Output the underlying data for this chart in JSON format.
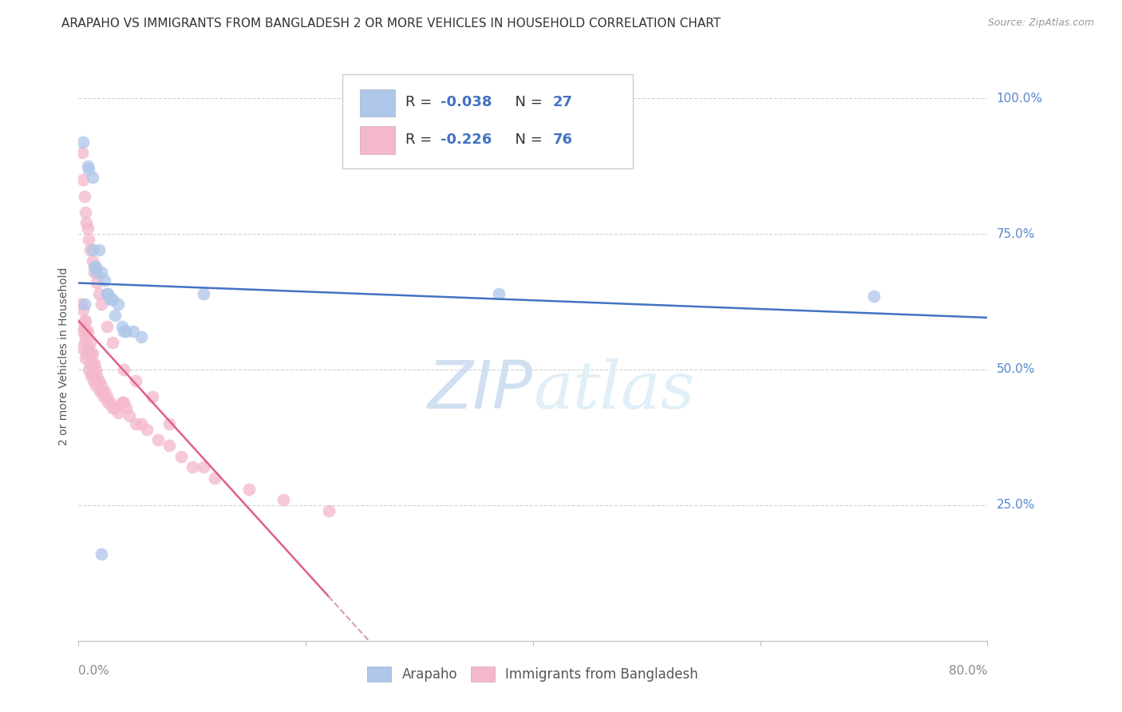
{
  "title": "ARAPAHO VS IMMIGRANTS FROM BANGLADESH 2 OR MORE VEHICLES IN HOUSEHOLD CORRELATION CHART",
  "source": "Source: ZipAtlas.com",
  "ylabel": "2 or more Vehicles in Household",
  "ytick_labels": [
    "100.0%",
    "75.0%",
    "50.0%",
    "25.0%"
  ],
  "ytick_values": [
    1.0,
    0.75,
    0.5,
    0.25
  ],
  "xlim": [
    0.0,
    0.8
  ],
  "ylim": [
    0.0,
    1.05
  ],
  "legend_label1": "Arapaho",
  "legend_label2": "Immigrants from Bangladesh",
  "r1": "-0.038",
  "n1": "27",
  "r2": "-0.226",
  "n2": "76",
  "color_blue": "#aec6e8",
  "color_pink": "#f4b8cb",
  "line_color_blue": "#4472c4",
  "line_color_pink": "#e06080",
  "dash_color": "#d4a0a8",
  "text_color": "#333333",
  "source_color": "#999999",
  "grid_color": "#d0d0d0",
  "right_label_color": "#5588cc",
  "bottom_label_color": "#888888",
  "legend_text_color": "#333333",
  "legend_value_color": "#4472c4",
  "bg_color": "#ffffff",
  "arapaho_x": [
    0.004,
    0.008,
    0.009,
    0.012,
    0.012,
    0.014,
    0.015,
    0.016,
    0.018,
    0.02,
    0.023,
    0.025,
    0.026,
    0.028,
    0.03,
    0.032,
    0.035,
    0.038,
    0.04,
    0.042,
    0.048,
    0.055,
    0.11,
    0.37,
    0.7,
    0.005,
    0.02
  ],
  "arapaho_y": [
    0.92,
    0.875,
    0.87,
    0.855,
    0.72,
    0.69,
    0.69,
    0.68,
    0.72,
    0.68,
    0.665,
    0.64,
    0.64,
    0.63,
    0.63,
    0.6,
    0.62,
    0.58,
    0.57,
    0.57,
    0.57,
    0.56,
    0.64,
    0.64,
    0.635,
    0.62,
    0.16
  ],
  "bangladesh_x": [
    0.002,
    0.003,
    0.003,
    0.004,
    0.004,
    0.005,
    0.005,
    0.006,
    0.006,
    0.006,
    0.007,
    0.007,
    0.008,
    0.008,
    0.009,
    0.009,
    0.01,
    0.01,
    0.011,
    0.011,
    0.012,
    0.012,
    0.013,
    0.013,
    0.014,
    0.015,
    0.015,
    0.016,
    0.017,
    0.018,
    0.019,
    0.02,
    0.021,
    0.022,
    0.023,
    0.025,
    0.026,
    0.028,
    0.03,
    0.032,
    0.035,
    0.038,
    0.04,
    0.042,
    0.045,
    0.05,
    0.055,
    0.06,
    0.07,
    0.08,
    0.09,
    0.1,
    0.12,
    0.15,
    0.18,
    0.22,
    0.003,
    0.004,
    0.005,
    0.006,
    0.007,
    0.008,
    0.009,
    0.01,
    0.012,
    0.014,
    0.016,
    0.018,
    0.02,
    0.025,
    0.03,
    0.04,
    0.05,
    0.065,
    0.08,
    0.11
  ],
  "bangladesh_y": [
    0.62,
    0.58,
    0.54,
    0.61,
    0.57,
    0.59,
    0.55,
    0.59,
    0.56,
    0.52,
    0.57,
    0.53,
    0.57,
    0.53,
    0.54,
    0.5,
    0.55,
    0.51,
    0.53,
    0.49,
    0.53,
    0.49,
    0.51,
    0.48,
    0.51,
    0.5,
    0.47,
    0.49,
    0.48,
    0.48,
    0.46,
    0.47,
    0.46,
    0.45,
    0.46,
    0.45,
    0.44,
    0.44,
    0.43,
    0.43,
    0.42,
    0.44,
    0.44,
    0.43,
    0.415,
    0.4,
    0.4,
    0.39,
    0.37,
    0.36,
    0.34,
    0.32,
    0.3,
    0.28,
    0.26,
    0.24,
    0.9,
    0.85,
    0.82,
    0.79,
    0.77,
    0.76,
    0.74,
    0.72,
    0.7,
    0.68,
    0.66,
    0.64,
    0.62,
    0.58,
    0.55,
    0.5,
    0.48,
    0.45,
    0.4,
    0.32
  ]
}
